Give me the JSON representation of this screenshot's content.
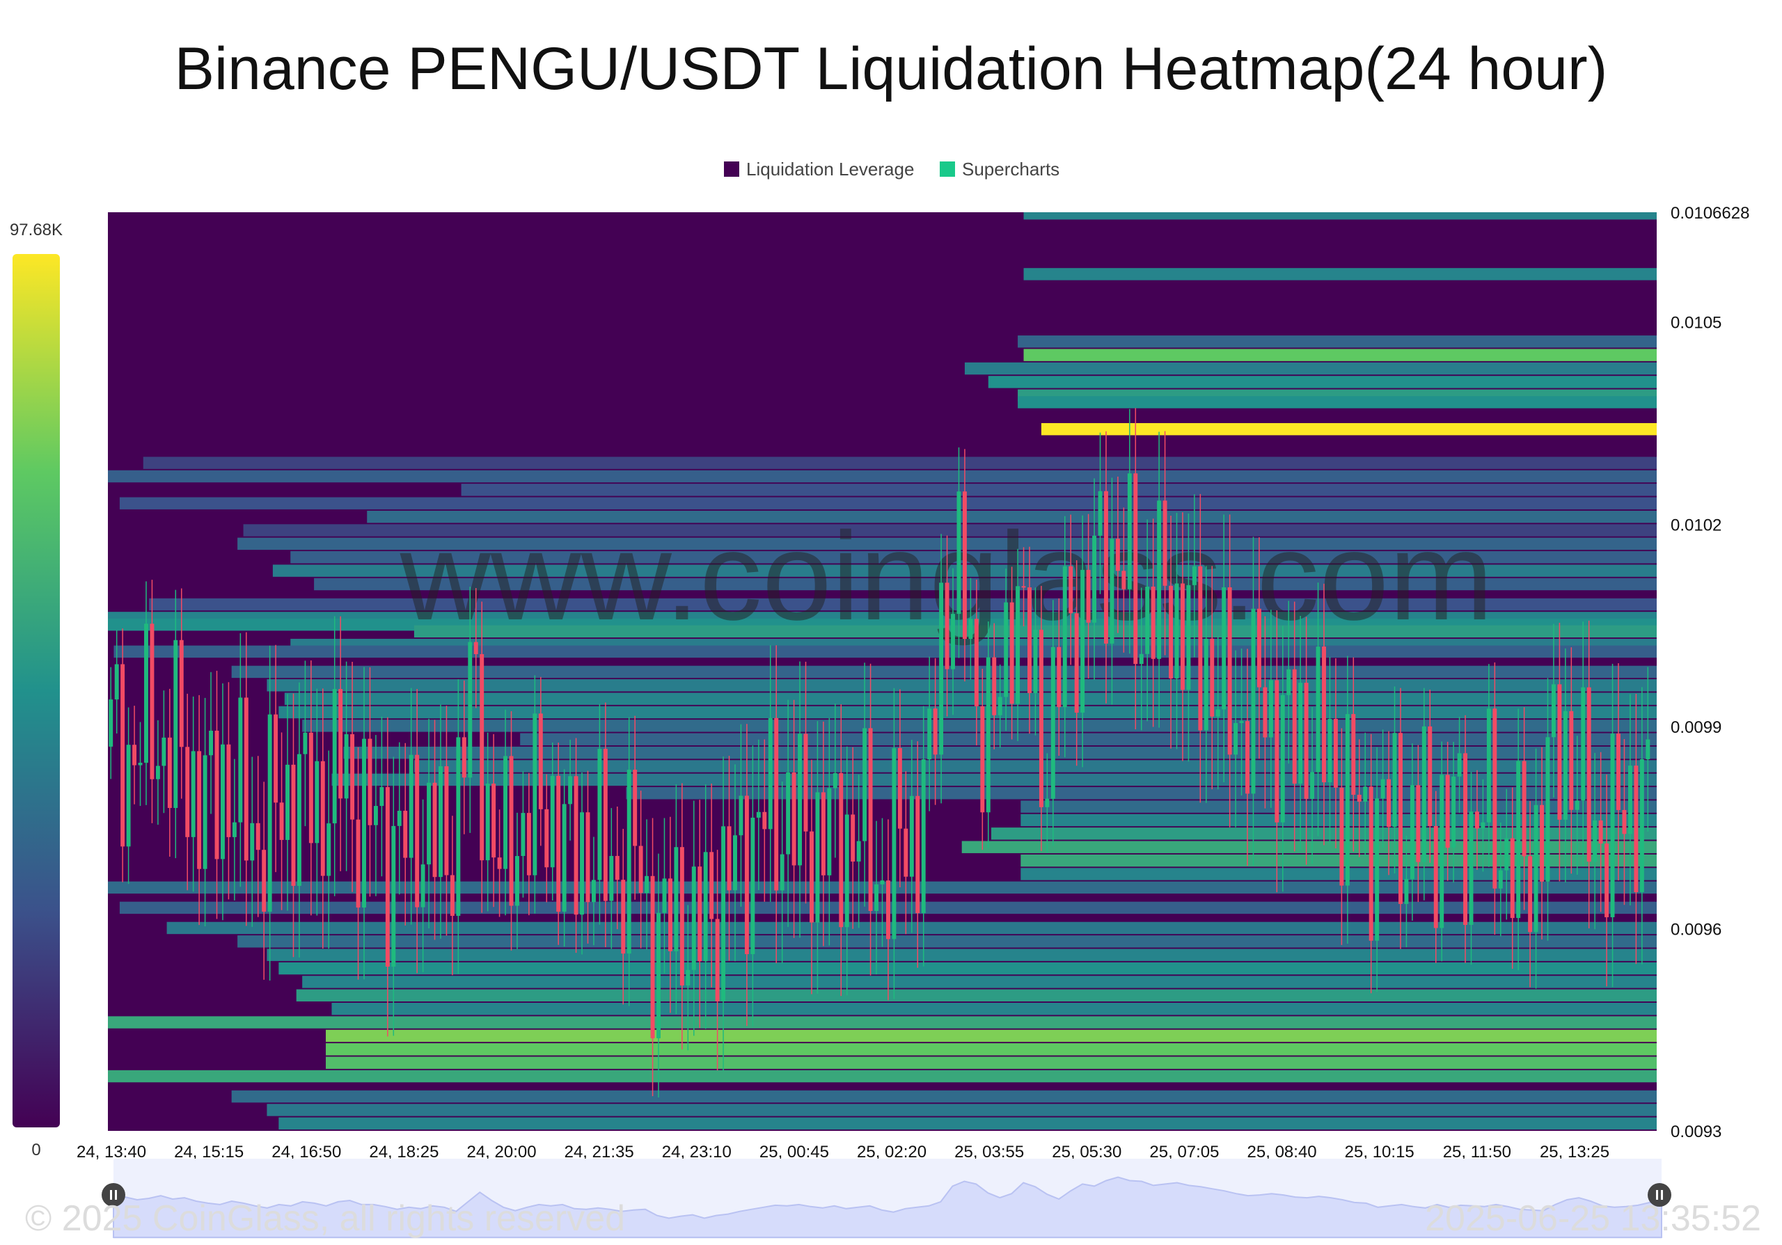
{
  "title": "Binance PENGU/USDT Liquidation Heatmap(24 hour)",
  "legend": [
    {
      "label": "Liquidation Leverage",
      "color": "#440154"
    },
    {
      "label": "Supercharts",
      "color": "#19c98a"
    }
  ],
  "watermark": "www.coinglass.com",
  "footer": {
    "copyright": "© 2025 CoinGlass, all rights reserved",
    "timestamp": "2025-06-25 13:35:52"
  },
  "colorbar": {
    "max_label": "97.68K",
    "min_label": "0"
  },
  "chart_data": {
    "type": "heatmap",
    "title": "Binance PENGU/USDT Liquidation Heatmap(24 hour)",
    "x_tick_labels": [
      "24, 13:40",
      "24, 15:15",
      "24, 16:50",
      "24, 18:25",
      "24, 20:00",
      "24, 21:35",
      "24, 23:10",
      "25, 00:45",
      "25, 02:20",
      "25, 03:55",
      "25, 05:30",
      "25, 07:05",
      "25, 08:40",
      "25, 10:15",
      "25, 11:50",
      "25, 13:25"
    ],
    "y_tick_labels": [
      "0.0106628",
      "0.0105",
      "0.0102",
      "0.0099",
      "0.0096",
      "0.0093"
    ],
    "ylim": [
      0.0093,
      0.0106628
    ],
    "colorscale": [
      "#440154",
      "#3b528b",
      "#21918c",
      "#5ec962",
      "#fde725"
    ],
    "value_range": [
      0,
      97680
    ],
    "grid": false,
    "legend_position": "top-center",
    "price_path": [
      [
        0,
        0.00987
      ],
      [
        2,
        0.00989
      ],
      [
        4,
        0.00985
      ],
      [
        6,
        0.00987
      ],
      [
        8,
        0.00991
      ],
      [
        10,
        0.00986
      ],
      [
        12,
        0.00988
      ],
      [
        14,
        0.00983
      ],
      [
        16,
        0.0098
      ],
      [
        18,
        0.00978
      ],
      [
        20,
        0.00983
      ],
      [
        22,
        0.0098
      ],
      [
        24,
        0.00976
      ],
      [
        26,
        0.00973
      ],
      [
        28,
        0.00978
      ],
      [
        30,
        0.00976
      ],
      [
        32,
        0.00982
      ],
      [
        34,
        0.0098
      ],
      [
        36,
        0.00976
      ],
      [
        38,
        0.00982
      ],
      [
        40,
        0.00984
      ],
      [
        42,
        0.00978
      ],
      [
        44,
        0.00978
      ],
      [
        46,
        0.00975
      ],
      [
        48,
        0.00971
      ],
      [
        50,
        0.00974
      ],
      [
        52,
        0.00972
      ],
      [
        54,
        0.00976
      ],
      [
        56,
        0.00974
      ],
      [
        58,
        0.00968
      ],
      [
        60,
        0.00982
      ],
      [
        62,
        0.00996
      ],
      [
        64,
        0.00984
      ],
      [
        66,
        0.00974
      ],
      [
        68,
        0.00969
      ],
      [
        70,
        0.00974
      ],
      [
        72,
        0.00978
      ],
      [
        74,
        0.00976
      ],
      [
        76,
        0.00978
      ],
      [
        78,
        0.00972
      ],
      [
        80,
        0.00971
      ],
      [
        82,
        0.00973
      ],
      [
        84,
        0.00971
      ],
      [
        86,
        0.00968
      ],
      [
        88,
        0.0097
      ],
      [
        90,
        0.00971
      ],
      [
        92,
        0.00962
      ],
      [
        94,
        0.00958
      ],
      [
        96,
        0.00961
      ],
      [
        98,
        0.00963
      ],
      [
        100,
        0.00958
      ],
      [
        102,
        0.00962
      ],
      [
        104,
        0.00964
      ],
      [
        106,
        0.00968
      ],
      [
        108,
        0.00971
      ],
      [
        110,
        0.00974
      ],
      [
        112,
        0.00977
      ],
      [
        114,
        0.00976
      ],
      [
        116,
        0.00978
      ],
      [
        118,
        0.00975
      ],
      [
        120,
        0.00973
      ],
      [
        122,
        0.00976
      ],
      [
        124,
        0.00972
      ],
      [
        126,
        0.00974
      ],
      [
        128,
        0.00976
      ],
      [
        130,
        0.0097
      ],
      [
        132,
        0.00967
      ],
      [
        134,
        0.00972
      ],
      [
        136,
        0.00974
      ],
      [
        138,
        0.00976
      ],
      [
        140,
        0.00982
      ],
      [
        142,
        0.01005
      ],
      [
        144,
        0.01012
      ],
      [
        146,
        0.01008
      ],
      [
        148,
        0.00995
      ],
      [
        150,
        0.00988
      ],
      [
        152,
        0.00994
      ],
      [
        154,
        0.0101
      ],
      [
        156,
        0.01004
      ],
      [
        158,
        0.00993
      ],
      [
        160,
        0.00986
      ],
      [
        162,
        0.00998
      ],
      [
        164,
        0.01008
      ],
      [
        166,
        0.01005
      ],
      [
        168,
        0.01013
      ],
      [
        170,
        0.01018
      ],
      [
        172,
        0.01013
      ],
      [
        174,
        0.01012
      ],
      [
        176,
        0.01006
      ],
      [
        178,
        0.01008
      ],
      [
        180,
        0.0101
      ],
      [
        182,
        0.01006
      ],
      [
        184,
        0.01004
      ],
      [
        186,
        0.01001
      ],
      [
        188,
        0.00998
      ],
      [
        190,
        0.00994
      ],
      [
        192,
        0.00991
      ],
      [
        194,
        0.00992
      ],
      [
        196,
        0.00994
      ],
      [
        198,
        0.00992
      ],
      [
        200,
        0.00989
      ],
      [
        202,
        0.00988
      ],
      [
        204,
        0.0099
      ],
      [
        206,
        0.00988
      ],
      [
        208,
        0.00985
      ],
      [
        210,
        0.00981
      ],
      [
        212,
        0.0098
      ],
      [
        214,
        0.00974
      ],
      [
        216,
        0.00976
      ],
      [
        218,
        0.00978
      ],
      [
        220,
        0.00975
      ],
      [
        222,
        0.00973
      ],
      [
        224,
        0.00978
      ],
      [
        226,
        0.00974
      ],
      [
        228,
        0.00977
      ],
      [
        230,
        0.00976
      ],
      [
        232,
        0.00975
      ],
      [
        234,
        0.00978
      ],
      [
        236,
        0.00975
      ],
      [
        238,
        0.00971
      ],
      [
        240,
        0.0097
      ],
      [
        242,
        0.00969
      ],
      [
        244,
        0.00978
      ],
      [
        246,
        0.00985
      ],
      [
        248,
        0.00988
      ],
      [
        250,
        0.00983
      ],
      [
        252,
        0.00976
      ],
      [
        254,
        0.00974
      ],
      [
        256,
        0.00975
      ],
      [
        258,
        0.00977
      ],
      [
        260,
        0.00981
      ],
      [
        262,
        0.00979
      ]
    ],
    "liquidation_bands": [
      {
        "price": 0.01066,
        "x_start": 155.5,
        "intensity": 0.45
      },
      {
        "price": 0.01057,
        "x_start": 155.5,
        "intensity": 0.45
      },
      {
        "price": 0.01047,
        "x_start": 154.5,
        "intensity": 0.32
      },
      {
        "price": 0.01045,
        "x_start": 155.5,
        "intensity": 0.75
      },
      {
        "price": 0.01043,
        "x_start": 145.5,
        "intensity": 0.42
      },
      {
        "price": 0.01041,
        "x_start": 149.5,
        "intensity": 0.5
      },
      {
        "price": 0.01039,
        "x_start": 154.5,
        "intensity": 0.55
      },
      {
        "price": 0.01038,
        "x_start": 154.5,
        "intensity": 0.5
      },
      {
        "price": 0.01034,
        "x_start": 158.5,
        "intensity": 1.0
      },
      {
        "price": 0.01029,
        "x_start": 6,
        "intensity": 0.2
      },
      {
        "price": 0.01027,
        "x_start": 0,
        "intensity": 0.3
      },
      {
        "price": 0.01025,
        "x_start": 60,
        "intensity": 0.25
      },
      {
        "price": 0.01023,
        "x_start": 2,
        "intensity": 0.25
      },
      {
        "price": 0.01021,
        "x_start": 44,
        "intensity": 0.35
      },
      {
        "price": 0.01019,
        "x_start": 23,
        "intensity": 0.2
      },
      {
        "price": 0.01017,
        "x_start": 22,
        "intensity": 0.32
      },
      {
        "price": 0.01015,
        "x_start": 31,
        "intensity": 0.3
      },
      {
        "price": 0.01013,
        "x_start": 28,
        "intensity": 0.42
      },
      {
        "price": 0.01011,
        "x_start": 35,
        "intensity": 0.3
      },
      {
        "price": 0.01008,
        "x_start": 7,
        "intensity": 0.25
      },
      {
        "price": 0.01006,
        "x_start": 0,
        "intensity": 0.45
      },
      {
        "price": 0.01005,
        "x_start": 0,
        "intensity": 0.5
      },
      {
        "price": 0.01004,
        "x_start": 52,
        "intensity": 0.55
      },
      {
        "price": 0.01002,
        "x_start": 31,
        "intensity": 0.42
      },
      {
        "price": 0.01001,
        "x_start": 1,
        "intensity": 0.3
      },
      {
        "price": 0.00998,
        "x_start": 21,
        "intensity": 0.32
      },
      {
        "price": 0.00996,
        "x_start": 27,
        "intensity": 0.42
      },
      {
        "price": 0.00994,
        "x_start": 30,
        "intensity": 0.45
      },
      {
        "price": 0.00992,
        "x_start": 29,
        "intensity": 0.45
      },
      {
        "price": 0.0099,
        "x_start": 33,
        "intensity": 0.35
      },
      {
        "price": 0.00988,
        "x_start": 70,
        "intensity": 0.32
      },
      {
        "price": 0.00986,
        "x_start": 40,
        "intensity": 0.35
      },
      {
        "price": 0.00984,
        "x_start": 52,
        "intensity": 0.4
      },
      {
        "price": 0.00982,
        "x_start": 38,
        "intensity": 0.4
      },
      {
        "price": 0.0098,
        "x_start": 88,
        "intensity": 0.32
      },
      {
        "price": 0.00978,
        "x_start": 155,
        "intensity": 0.35
      },
      {
        "price": 0.00976,
        "x_start": 155,
        "intensity": 0.45
      },
      {
        "price": 0.00974,
        "x_start": 150,
        "intensity": 0.55
      },
      {
        "price": 0.00972,
        "x_start": 145,
        "intensity": 0.6
      },
      {
        "price": 0.0097,
        "x_start": 155,
        "intensity": 0.6
      },
      {
        "price": 0.00968,
        "x_start": 155,
        "intensity": 0.45
      },
      {
        "price": 0.00966,
        "x_start": 0,
        "intensity": 0.35
      },
      {
        "price": 0.00963,
        "x_start": 2,
        "intensity": 0.3
      },
      {
        "price": 0.0096,
        "x_start": 10,
        "intensity": 0.4
      },
      {
        "price": 0.00958,
        "x_start": 22,
        "intensity": 0.35
      },
      {
        "price": 0.00956,
        "x_start": 27,
        "intensity": 0.45
      },
      {
        "price": 0.00954,
        "x_start": 29,
        "intensity": 0.5
      },
      {
        "price": 0.00952,
        "x_start": 33,
        "intensity": 0.45
      },
      {
        "price": 0.0095,
        "x_start": 32,
        "intensity": 0.55
      },
      {
        "price": 0.00948,
        "x_start": 38,
        "intensity": 0.45
      },
      {
        "price": 0.00946,
        "x_start": 0,
        "intensity": 0.6
      },
      {
        "price": 0.00944,
        "x_start": 37,
        "intensity": 0.8
      },
      {
        "price": 0.00942,
        "x_start": 37,
        "intensity": 0.75
      },
      {
        "price": 0.0094,
        "x_start": 37,
        "intensity": 0.7
      },
      {
        "price": 0.00938,
        "x_start": 0,
        "intensity": 0.6
      },
      {
        "price": 0.00935,
        "x_start": 21,
        "intensity": 0.35
      },
      {
        "price": 0.00933,
        "x_start": 27,
        "intensity": 0.4
      },
      {
        "price": 0.00931,
        "x_start": 29,
        "intensity": 0.45
      },
      {
        "price": 0.00929,
        "x_start": 33,
        "intensity": 0.42
      },
      {
        "price": 0.00927,
        "x_start": 31,
        "intensity": 0.55
      },
      {
        "price": 0.00925,
        "x_start": 29,
        "intensity": 0.5
      },
      {
        "price": 0.00923,
        "x_start": 28,
        "intensity": 0.45
      },
      {
        "price": 0.00921,
        "x_start": 27,
        "intensity": 0.5
      },
      {
        "price": 0.00919,
        "x_start": 30,
        "intensity": 0.45
      },
      {
        "price": 0.00917,
        "x_start": 30,
        "intensity": 0.35
      },
      {
        "price": 0.00915,
        "x_start": 30,
        "intensity": 0.4
      },
      {
        "price": 0.00913,
        "x_start": 30,
        "intensity": 0.35
      }
    ]
  }
}
